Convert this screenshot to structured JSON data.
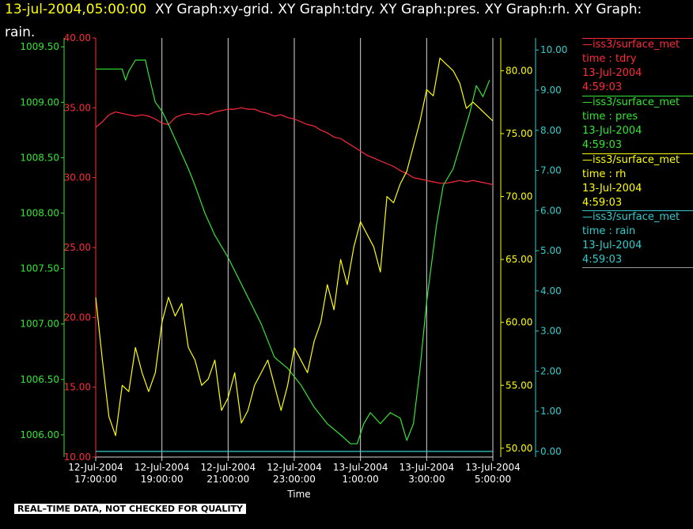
{
  "title": {
    "timestamp": "13-jul-2004,05:00:00",
    "line1_rest": "XY Graph:xy-grid.  XY Graph:tdry.  XY Graph:pres.  XY Graph:rh.  XY Graph:",
    "line2": "rain."
  },
  "legend": [
    {
      "source": "iss3/surface_met",
      "var": "time : tdry",
      "date": "13-Jul-2004",
      "time": "4:59:03",
      "color": "#ff2a3a"
    },
    {
      "source": "iss3/surface_met",
      "var": "time : pres",
      "date": "13-Jul-2004",
      "time": "4:59:03",
      "color": "#33e633"
    },
    {
      "source": "iss3/surface_met",
      "var": "time : rh",
      "date": "13-Jul-2004",
      "time": "4:59:03",
      "color": "#ffff00"
    },
    {
      "source": "iss3/surface_met",
      "var": "time : rain",
      "date": "13-Jul-2004",
      "time": "4:59:03",
      "color": "#33cccc"
    }
  ],
  "footer_note": "REAL–TIME DATA, NOT CHECKED FOR QUALITY",
  "chart_data": {
    "type": "line",
    "xlabel": "Time",
    "x_ticks": [
      {
        "date": "12-Jul-2004",
        "time": "17:00:00",
        "h": 0
      },
      {
        "date": "12-Jul-2004",
        "time": "19:00:00",
        "h": 2
      },
      {
        "date": "12-Jul-2004",
        "time": "21:00:00",
        "h": 4
      },
      {
        "date": "12-Jul-2004",
        "time": "23:00:00",
        "h": 6
      },
      {
        "date": "13-Jul-2004",
        "time": "1:00:00",
        "h": 8
      },
      {
        "date": "13-Jul-2004",
        "time": "3:00:00",
        "h": 10
      },
      {
        "date": "13-Jul-2004",
        "time": "5:00:00",
        "h": 12
      }
    ],
    "xlim": [
      0,
      12
    ],
    "axes": [
      {
        "id": "pres",
        "ylim": [
          1005.8,
          1009.58
        ],
        "ticks": [
          "1006.00",
          "1006.50",
          "1007.00",
          "1007.50",
          "1008.00",
          "1008.50",
          "1009.00",
          "1009.50"
        ],
        "color": "#33e633"
      },
      {
        "id": "tdry",
        "ylim": [
          10,
          40
        ],
        "ticks": [
          "10.00",
          "15.00",
          "20.00",
          "25.00",
          "30.00",
          "35.00",
          "40.00"
        ],
        "color": "#ff2a3a"
      },
      {
        "id": "rh",
        "ylim": [
          49.3,
          82.6
        ],
        "ticks": [
          "50.00",
          "55.00",
          "60.00",
          "65.00",
          "70.00",
          "75.00",
          "80.00"
        ],
        "color": "#ffff00"
      },
      {
        "id": "rain",
        "ylim": [
          -0.14,
          10.3
        ],
        "ticks": [
          "0.00",
          "1.00",
          "2.00",
          "3.00",
          "4.00",
          "5.00",
          "6.00",
          "7.00",
          "8.00",
          "9.00",
          "10.00"
        ],
        "color": "#33cccc"
      }
    ],
    "series": [
      {
        "name": "time : tdry",
        "axis": "tdry",
        "color": "#ff2a3a",
        "x": [
          0,
          0.2,
          0.4,
          0.6,
          0.8,
          1.0,
          1.2,
          1.4,
          1.6,
          1.8,
          2.0,
          2.2,
          2.4,
          2.6,
          2.8,
          3.0,
          3.2,
          3.4,
          3.6,
          3.8,
          4.0,
          4.2,
          4.4,
          4.6,
          4.8,
          5.0,
          5.2,
          5.4,
          5.6,
          5.8,
          6.0,
          6.2,
          6.4,
          6.6,
          6.8,
          7.0,
          7.2,
          7.4,
          7.6,
          7.8,
          8.0,
          8.2,
          8.4,
          8.6,
          8.8,
          9.0,
          9.2,
          9.4,
          9.6,
          9.8,
          10.0,
          10.2,
          10.4,
          10.6,
          10.8,
          11.0,
          11.2,
          11.4,
          11.6,
          11.8,
          12.0
        ],
        "y": [
          33.6,
          34.0,
          34.5,
          34.7,
          34.6,
          34.5,
          34.4,
          34.5,
          34.4,
          34.2,
          33.9,
          33.8,
          34.3,
          34.5,
          34.6,
          34.5,
          34.6,
          34.5,
          34.7,
          34.8,
          34.9,
          34.9,
          35.0,
          34.9,
          34.9,
          34.7,
          34.6,
          34.4,
          34.5,
          34.3,
          34.2,
          34.0,
          33.8,
          33.7,
          33.4,
          33.2,
          32.9,
          32.8,
          32.5,
          32.2,
          31.9,
          31.6,
          31.4,
          31.2,
          31.0,
          30.8,
          30.5,
          30.3,
          30.0,
          29.9,
          29.8,
          29.7,
          29.6,
          29.6,
          29.7,
          29.8,
          29.7,
          29.8,
          29.7,
          29.6,
          29.5
        ]
      },
      {
        "name": "time : pres",
        "axis": "pres",
        "color": "#33e633",
        "x": [
          0,
          0.5,
          0.8,
          0.9,
          1.0,
          1.2,
          1.5,
          1.6,
          1.8,
          2.0,
          2.2,
          2.5,
          2.8,
          3.0,
          3.3,
          3.6,
          4.0,
          4.5,
          5.0,
          5.4,
          5.8,
          6.2,
          6.6,
          7.0,
          7.4,
          7.7,
          7.9,
          8.1,
          8.3,
          8.6,
          8.9,
          9.2,
          9.4,
          9.6,
          9.8,
          10.0,
          10.3,
          10.5,
          10.8,
          11.0,
          11.3,
          11.5,
          11.7,
          11.9
        ],
        "y": [
          1009.3,
          1009.3,
          1009.3,
          1009.2,
          1009.28,
          1009.38,
          1009.38,
          1009.25,
          1009.0,
          1008.92,
          1008.8,
          1008.6,
          1008.4,
          1008.25,
          1008.0,
          1007.8,
          1007.6,
          1007.3,
          1007.0,
          1006.7,
          1006.6,
          1006.45,
          1006.25,
          1006.1,
          1006.0,
          1005.92,
          1005.92,
          1006.1,
          1006.2,
          1006.1,
          1006.2,
          1006.15,
          1005.95,
          1006.1,
          1006.6,
          1007.2,
          1007.9,
          1008.25,
          1008.4,
          1008.6,
          1008.9,
          1009.15,
          1009.05,
          1009.2
        ]
      },
      {
        "name": "time : rh",
        "axis": "rh",
        "color": "#ffff00",
        "x": [
          0,
          0.2,
          0.4,
          0.6,
          0.8,
          1.0,
          1.2,
          1.4,
          1.6,
          1.8,
          2.0,
          2.2,
          2.4,
          2.6,
          2.8,
          3.0,
          3.2,
          3.4,
          3.6,
          3.8,
          4.0,
          4.2,
          4.4,
          4.6,
          4.8,
          5.0,
          5.2,
          5.4,
          5.6,
          5.8,
          6.0,
          6.2,
          6.4,
          6.6,
          6.8,
          7.0,
          7.2,
          7.4,
          7.6,
          7.8,
          8.0,
          8.2,
          8.4,
          8.6,
          8.8,
          9.0,
          9.2,
          9.4,
          9.6,
          9.8,
          10.0,
          10.2,
          10.4,
          10.6,
          10.8,
          11.0,
          11.2,
          11.4,
          11.6,
          11.8,
          12.0
        ],
        "y": [
          62.0,
          57.0,
          52.5,
          51.0,
          55.0,
          54.5,
          58.0,
          56.0,
          54.5,
          56.0,
          60.0,
          62.0,
          60.5,
          61.5,
          58.0,
          57.0,
          55.0,
          55.5,
          57.0,
          53.0,
          54.0,
          56.0,
          52.0,
          53.0,
          55.0,
          56.0,
          57.0,
          55.0,
          53.0,
          55.0,
          58.0,
          57.0,
          56.0,
          58.5,
          60.0,
          63.0,
          61.0,
          65.0,
          63.0,
          66.0,
          68.0,
          67.0,
          66.0,
          64.0,
          70.0,
          69.5,
          71.0,
          72.0,
          74.0,
          76.0,
          78.5,
          78.0,
          81.0,
          80.5,
          80.0,
          79.0,
          77.0,
          77.5,
          77.0,
          76.5,
          76.0
        ]
      },
      {
        "name": "time : rain",
        "axis": "rain",
        "color": "#33cccc",
        "x": [
          0,
          12
        ],
        "y": [
          0,
          0
        ]
      }
    ]
  }
}
